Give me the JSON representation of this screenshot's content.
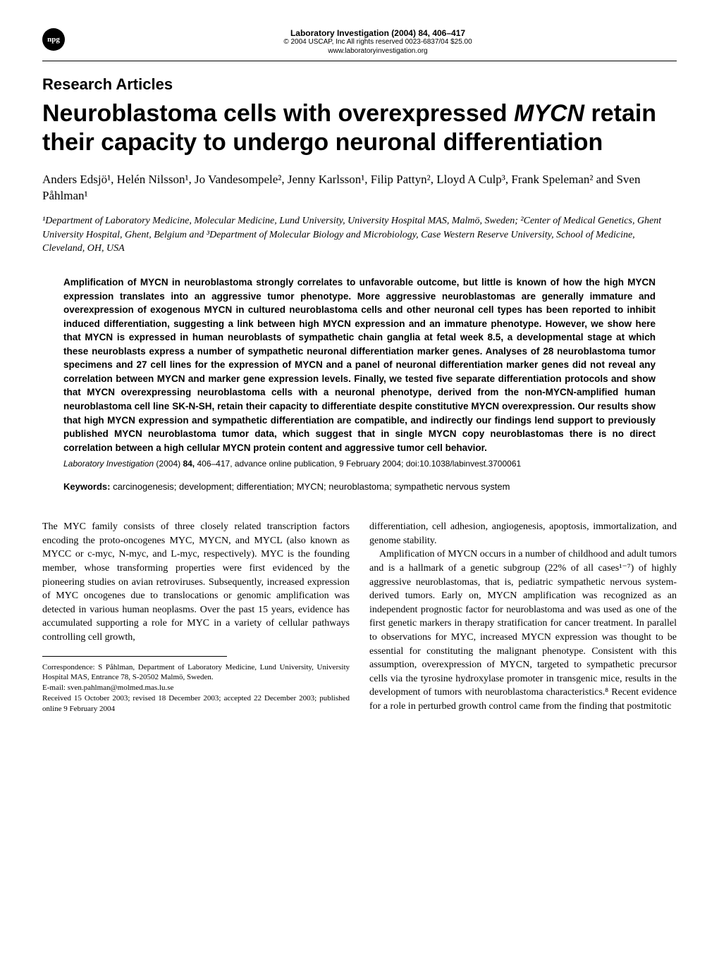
{
  "header": {
    "logo_text": "npg",
    "journal_citation": "Laboratory Investigation (2004) 84, 406–417",
    "copyright": "© 2004 USCAP, Inc   All rights reserved 0023-6837/04 $25.00",
    "website": "www.laboratoryinvestigation.org"
  },
  "section_label": "Research Articles",
  "title": {
    "line1": "Neuroblastoma cells with overexpressed ",
    "line1_italic": "MYCN",
    "line2": " retain their capacity to undergo neuronal differentiation"
  },
  "authors": "Anders Edsjö¹, Helén Nilsson¹, Jo Vandesompele², Jenny Karlsson¹, Filip Pattyn², Lloyd A Culp³, Frank Speleman² and Sven Påhlman¹",
  "affiliations": "¹Department of Laboratory Medicine, Molecular Medicine, Lund University, University Hospital MAS, Malmö, Sweden; ²Center of Medical Genetics, Ghent University Hospital, Ghent, Belgium and ³Department of Molecular Biology and Microbiology, Case Western Reserve University, School of Medicine, Cleveland, OH, USA",
  "abstract": "Amplification of MYCN in neuroblastoma strongly correlates to unfavorable outcome, but little is known of how the high MYCN expression translates into an aggressive tumor phenotype. More aggressive neuroblastomas are generally immature and overexpression of exogenous MYCN in cultured neuroblastoma cells and other neuronal cell types has been reported to inhibit induced differentiation, suggesting a link between high MYCN expression and an immature phenotype. However, we show here that MYCN is expressed in human neuroblasts of sympathetic chain ganglia at fetal week 8.5, a developmental stage at which these neuroblasts express a number of sympathetic neuronal differentiation marker genes. Analyses of 28 neuroblastoma tumor specimens and 27 cell lines for the expression of MYCN and a panel of neuronal differentiation marker genes did not reveal any correlation between MYCN and marker gene expression levels. Finally, we tested five separate differentiation protocols and show that MYCN overexpressing neuroblastoma cells with a neuronal phenotype, derived from the non-MYCN-amplified human neuroblastoma cell line SK-N-SH, retain their capacity to differentiate despite constitutive MYCN overexpression. Our results show that high MYCN expression and sympathetic differentiation are compatible, and indirectly our findings lend support to previously published MYCN neuroblastoma tumor data, which suggest that in single MYCN copy neuroblastomas there is no direct correlation between a high cellular MYCN protein content and aggressive tumor cell behavior.",
  "citation": {
    "journal": "Laboratory Investigation",
    "year_vol": " (2004) ",
    "volume": "84,",
    "pages": " 406–417, advance online publication, 9 February 2004; doi:10.1038/labinvest.3700061"
  },
  "keywords": {
    "label": "Keywords:",
    "text": " carcinogenesis; development; differentiation; MYCN; neuroblastoma; sympathetic nervous system"
  },
  "body": {
    "col1_p1": "The MYC family consists of three closely related transcription factors encoding the proto-oncogenes MYC, MYCN, and MYCL (also known as MYCC or c-myc, N-myc, and L-myc, respectively). MYC is the founding member, whose transforming properties were first evidenced by the pioneering studies on avian retroviruses. Subsequently, increased expression of MYC oncogenes due to translocations or genomic amplification was detected in various human neoplasms. Over the past 15 years, evidence has accumulated supporting a role for MYC in a variety of cellular pathways controlling cell growth,",
    "col2_p1": "differentiation, cell adhesion, angiogenesis, apoptosis, immortalization, and genome stability.",
    "col2_p2": "Amplification of MYCN occurs in a number of childhood and adult tumors and is a hallmark of a genetic subgroup (22% of all cases¹⁻⁷) of highly aggressive neuroblastomas, that is, pediatric sympathetic nervous system-derived tumors. Early on, MYCN amplification was recognized as an independent prognostic factor for neuroblastoma and was used as one of the first genetic markers in therapy stratification for cancer treatment. In parallel to observations for MYC, increased MYCN expression was thought to be essential for constituting the malignant phenotype. Consistent with this assumption, overexpression of MYCN, targeted to sympathetic precursor cells via the tyrosine hydroxylase promoter in transgenic mice, results in the development of tumors with neuroblastoma characteristics.⁸ Recent evidence for a role in perturbed growth control came from the finding that postmitotic"
  },
  "correspondence": {
    "line1": "Correspondence: S Påhlman, Department of Laboratory Medicine, Lund University, University Hospital MAS, Entrance 78, S-20502 Malmö, Sweden.",
    "line2": "E-mail: sven.pahlman@molmed.mas.lu.se",
    "line3": "Received 15 October 2003; revised 18 December 2003; accepted 22 December 2003; published online 9 February 2004"
  },
  "colors": {
    "text": "#000000",
    "background": "#ffffff"
  },
  "typography": {
    "body_font": "Georgia, Times New Roman, serif",
    "sans_font": "Arial, sans-serif",
    "title_size_pt": 34,
    "section_label_size_pt": 22,
    "authors_size_pt": 17,
    "affiliations_size_pt": 14,
    "abstract_size_pt": 13.5,
    "body_size_pt": 14,
    "correspondence_size_pt": 11
  }
}
